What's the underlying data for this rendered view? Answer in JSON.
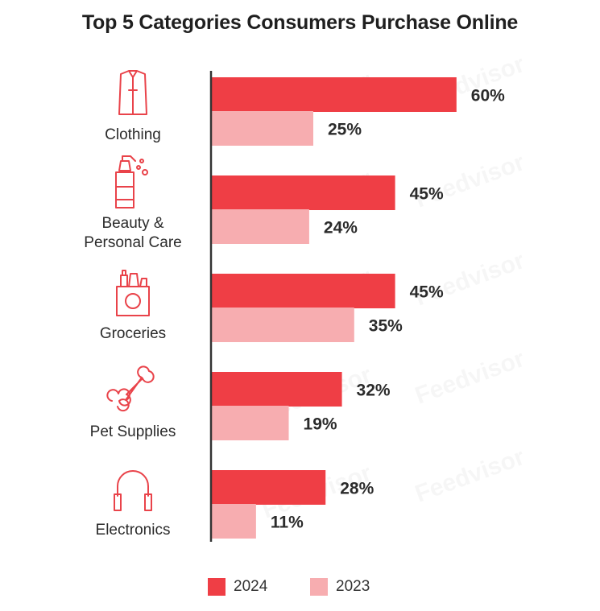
{
  "title": "Top 5 Categories Consumers Purchase Online",
  "colors": {
    "s2024": "#ef3e45",
    "s2023": "#f7adb0",
    "icon": "#e9434a",
    "axis": "#333333"
  },
  "chart_data": {
    "type": "bar",
    "orientation": "horizontal",
    "title": "Top 5 Categories Consumers Purchase Online",
    "unit": "%",
    "categories": [
      "Clothing",
      "Beauty & Personal Care",
      "Groceries",
      "Pet Supplies",
      "Electronics"
    ],
    "category_lines": [
      [
        "Clothing"
      ],
      [
        "Beauty &",
        "Personal Care"
      ],
      [
        "Groceries"
      ],
      [
        "Pet Supplies"
      ],
      [
        "Electronics"
      ]
    ],
    "category_icons": [
      "shirt-icon",
      "spray-bottle-icon",
      "grocery-bag-icon",
      "bone-icon",
      "headphones-icon"
    ],
    "series": [
      {
        "name": "2024",
        "values": [
          60,
          45,
          45,
          32,
          28
        ]
      },
      {
        "name": "2023",
        "values": [
          25,
          24,
          35,
          19,
          11
        ]
      }
    ],
    "value_labels": {
      "2024": [
        "60%",
        "45%",
        "45%",
        "32%",
        "28%"
      ],
      "2023": [
        "25%",
        "24%",
        "35%",
        "19%",
        "11%"
      ]
    },
    "xlim": [
      0,
      100
    ],
    "legend": [
      {
        "label": "2024"
      },
      {
        "label": "2023"
      }
    ],
    "legend_position": "bottom-center",
    "watermark": "Feedvisor"
  }
}
